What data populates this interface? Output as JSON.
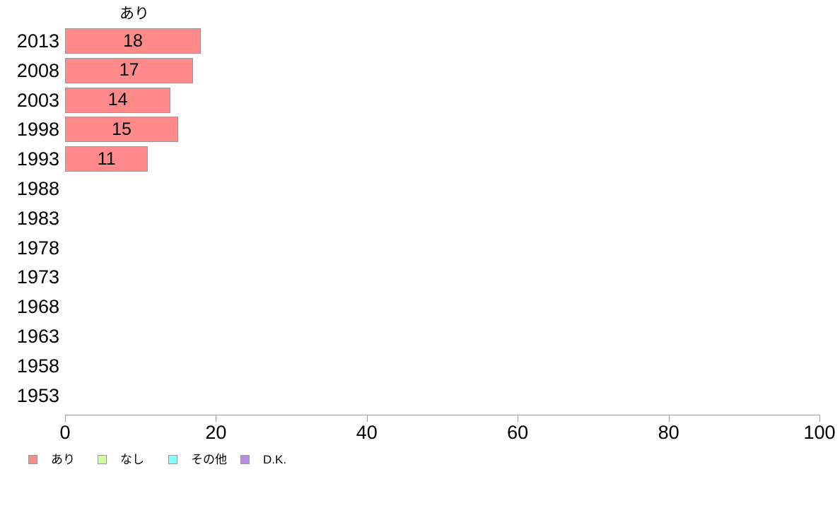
{
  "chart_data": {
    "type": "bar",
    "orientation": "horizontal",
    "title": "あり",
    "categories": [
      "2013",
      "2008",
      "2003",
      "1998",
      "1993",
      "1988",
      "1983",
      "1978",
      "1973",
      "1968",
      "1963",
      "1958",
      "1953"
    ],
    "series": [
      {
        "name": "あり",
        "color": "#ff8a8a",
        "values": [
          18,
          17,
          14,
          15,
          11,
          null,
          null,
          null,
          null,
          null,
          null,
          null,
          null
        ]
      }
    ],
    "bar_labels_shown": true,
    "xlabel": "",
    "ylabel": "",
    "xlim": [
      0,
      100
    ],
    "x_ticks": [
      0,
      20,
      40,
      60,
      80,
      100
    ],
    "grid": false,
    "axis_color": "#999999",
    "text_color": "#000000",
    "legend": {
      "position": "bottom-left",
      "items": [
        {
          "label": "あり",
          "color": "#ff8a8a"
        },
        {
          "label": "なし",
          "color": "#ccff99"
        },
        {
          "label": "その他",
          "color": "#7fffff"
        },
        {
          "label": "D.K.",
          "color": "#b98ae8"
        }
      ]
    }
  }
}
